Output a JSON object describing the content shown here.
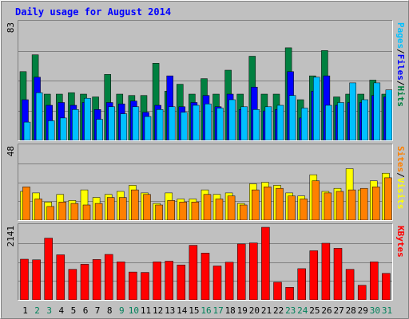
{
  "chart_data": {
    "type": "bar",
    "title": "Daily usage for August 2014",
    "categories": [
      "1",
      "2",
      "3",
      "4",
      "5",
      "6",
      "7",
      "8",
      "9",
      "10",
      "11",
      "12",
      "13",
      "14",
      "15",
      "16",
      "17",
      "18",
      "19",
      "20",
      "21",
      "22",
      "23",
      "24",
      "25",
      "26",
      "27",
      "28",
      "29",
      "30",
      "31"
    ],
    "weekend_days": [
      "2",
      "3",
      "9",
      "10",
      "16",
      "17",
      "23",
      "24",
      "30",
      "31"
    ],
    "panels": [
      {
        "id": "pages-files-hits",
        "ymax": 83,
        "ymax_label": "83",
        "side_label": [
          "Pages",
          "/",
          "Files",
          "/",
          "Hits"
        ],
        "series": [
          {
            "name": "Hits",
            "color": "#008040",
            "values": [
              49,
              61,
              33,
              33,
              34,
              33,
              31,
              47,
              33,
              32,
              32,
              55,
              35,
              40,
              33,
              44,
              33,
              50,
              33,
              60,
              33,
              33,
              66,
              29,
              46,
              64,
              31,
              33,
              33,
              43,
              33
            ]
          },
          {
            "name": "Files",
            "color": "#0000ff",
            "values": [
              29,
              45,
              25,
              27,
              25,
              27,
              22,
              27,
              26,
              28,
              20,
              25,
              46,
              24,
              27,
              32,
              24,
              33,
              22,
              38,
              21,
              22,
              49,
              16,
              35,
              46,
              25,
              27,
              27,
              32,
              31
            ]
          },
          {
            "name": "Pages",
            "color": "#00c0ff",
            "values": [
              13,
              34,
              14,
              16,
              22,
              30,
              15,
              24,
              19,
              24,
              17,
              22,
              24,
              20,
              25,
              26,
              23,
              29,
              24,
              22,
              24,
              25,
              32,
              23,
              45,
              25,
              27,
              41,
              29,
              41,
              36
            ]
          }
        ]
      },
      {
        "id": "visits-sites",
        "ymax": 48,
        "ymax_label": "48",
        "side_label": [
          "Sites",
          "/",
          "Visits"
        ],
        "series": [
          {
            "name": "Visits",
            "color": "#ffff00",
            "values": [
              19,
              18,
              12,
              17,
              13,
              20,
              15,
              17,
              19,
              23,
              18,
              11,
              18,
              14,
              14,
              20,
              17,
              18,
              11,
              24,
              25,
              23,
              18,
              16,
              30,
              19,
              21,
              34,
              20,
              26,
              31
            ]
          },
          {
            "name": "Sites",
            "color": "#ff8000",
            "values": [
              22,
              14,
              9,
              12,
              11,
              10,
              11,
              15,
              15,
              20,
              17,
              10,
              13,
              12,
              12,
              17,
              14,
              16,
              10,
              20,
              22,
              21,
              16,
              14,
              26,
              18,
              19,
              20,
              21,
              22,
              28
            ]
          }
        ]
      },
      {
        "id": "kbytes",
        "ymax": 2141,
        "ymax_label": "2141",
        "side_label": [
          "KBytes"
        ],
        "series": [
          {
            "name": "KBytes",
            "color": "#ff0000",
            "values": [
              1200,
              1180,
              1820,
              1330,
              900,
              1050,
              1190,
              1340,
              1120,
              820,
              810,
              1120,
              1140,
              1030,
              1610,
              1380,
              1000,
              1110,
              1650,
              1680,
              2141,
              520,
              370,
              920,
              1450,
              1670,
              1520,
              900,
              430,
              1120,
              780
            ]
          }
        ]
      }
    ]
  }
}
